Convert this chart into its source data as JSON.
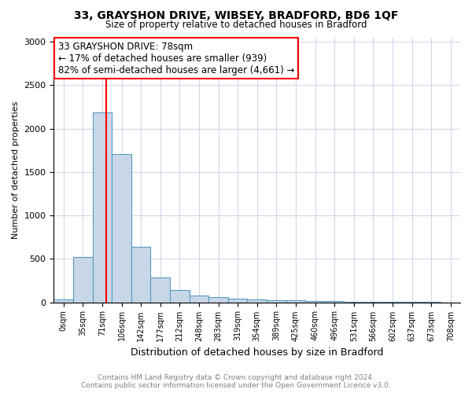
{
  "title": "33, GRAYSHON DRIVE, WIBSEY, BRADFORD, BD6 1QF",
  "subtitle": "Size of property relative to detached houses in Bradford",
  "xlabel": "Distribution of detached houses by size in Bradford",
  "ylabel": "Number of detached properties",
  "footer_line1": "Contains HM Land Registry data © Crown copyright and database right 2024.",
  "footer_line2": "Contains public sector information licensed under the Open Government Licence v3.0.",
  "bin_labels": [
    "0sqm",
    "35sqm",
    "71sqm",
    "106sqm",
    "142sqm",
    "177sqm",
    "212sqm",
    "248sqm",
    "283sqm",
    "319sqm",
    "354sqm",
    "389sqm",
    "425sqm",
    "460sqm",
    "496sqm",
    "531sqm",
    "566sqm",
    "602sqm",
    "637sqm",
    "673sqm",
    "708sqm"
  ],
  "bar_values": [
    30,
    520,
    2185,
    1710,
    640,
    290,
    140,
    75,
    60,
    45,
    30,
    25,
    20,
    15,
    10,
    8,
    5,
    4,
    3,
    3,
    0
  ],
  "bar_color": "#c8d8e8",
  "bar_edge_color": "#5a9abf",
  "annotation_text": "33 GRAYSHON DRIVE: 78sqm\n← 17% of detached houses are smaller (939)\n82% of semi-detached houses are larger (4,661) →",
  "annotation_box_color": "white",
  "annotation_box_edge": "red",
  "ylim": [
    0,
    3050
  ],
  "yticks": [
    0,
    500,
    1000,
    1500,
    2000,
    2500,
    3000
  ],
  "background_color": "white",
  "grid_color": "#d0d8e8",
  "red_line_index": 2.2
}
